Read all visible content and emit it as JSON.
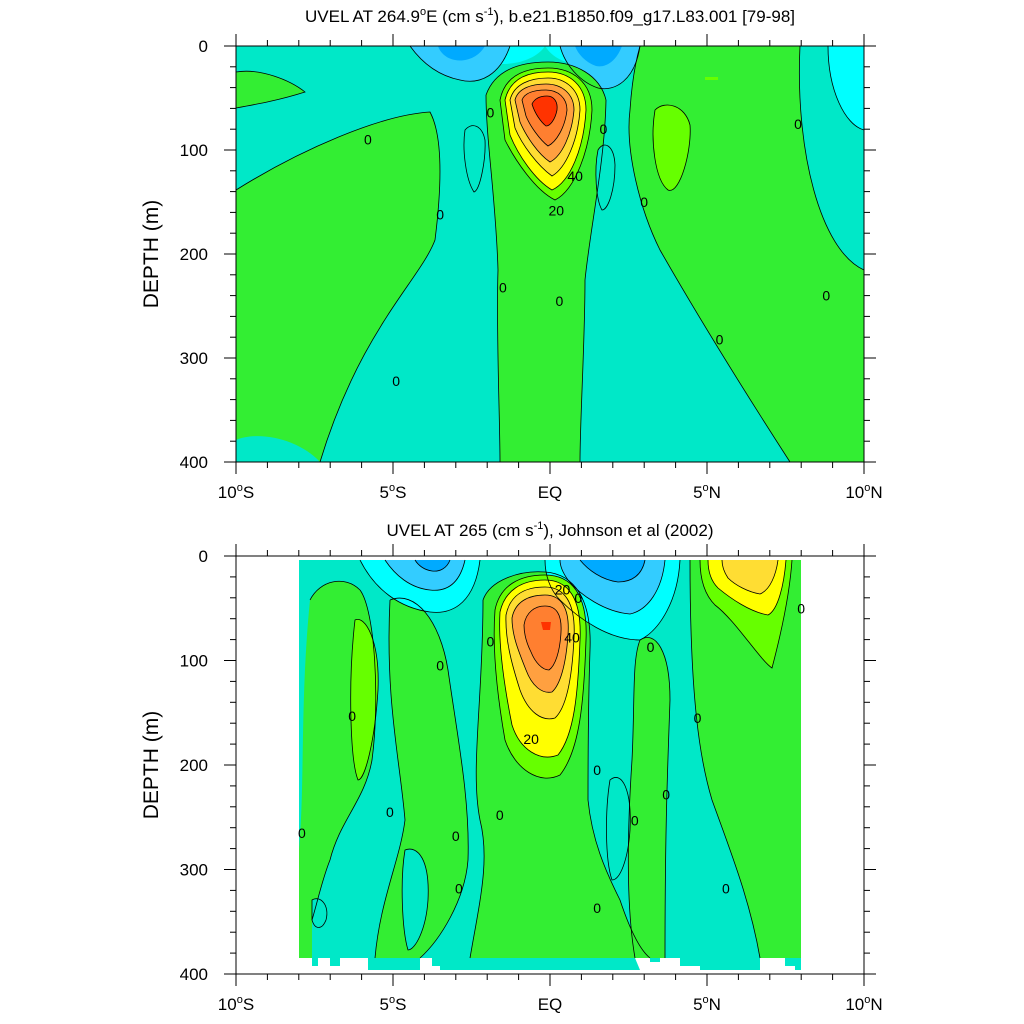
{
  "colors": {
    "cyan": "#00ffff",
    "aqua": "#33e6e6",
    "teal": "#00e8c8",
    "green": "#33ee33",
    "lightgreen": "#66ff00",
    "yellow": "#ffff00",
    "gold": "#ffdd33",
    "orange": "#ffa040",
    "darkorange": "#ff7f30",
    "red": "#ff3300",
    "blue": "#00aaff",
    "lightblue": "#33ccff",
    "line": "#000000"
  },
  "chart_data": [
    {
      "type": "heatmap",
      "title_main": "UVEL AT 264.9",
      "title_deg": "o",
      "title_mid": "E (cm s",
      "title_exp": "-1",
      "title_tail": "), b.e21.B1850.f09_g17.L83.001 [79-98]",
      "ylabel": "DEPTH (m)",
      "x_range": [
        -10,
        10
      ],
      "y_range": [
        0,
        400
      ],
      "y_reversed": true,
      "x_ticks": [
        {
          "value": -10,
          "num": "10",
          "deg": "o",
          "hemi": "S"
        },
        {
          "value": -5,
          "num": "5",
          "deg": "o",
          "hemi": "S"
        },
        {
          "value": 0,
          "num": "EQ",
          "deg": "",
          "hemi": ""
        },
        {
          "value": 5,
          "num": "5",
          "deg": "o",
          "hemi": "N"
        },
        {
          "value": 10,
          "num": "10",
          "deg": "o",
          "hemi": "N"
        }
      ],
      "y_ticks": [
        0,
        100,
        200,
        300,
        400
      ],
      "contour_labels": [
        {
          "x": -5.8,
          "y": 90,
          "text": "0"
        },
        {
          "x": -3.5,
          "y": 162,
          "text": "0"
        },
        {
          "x": -1.9,
          "y": 64,
          "text": "0"
        },
        {
          "x": -1.5,
          "y": 232,
          "text": "0"
        },
        {
          "x": 0.8,
          "y": 125,
          "text": "40"
        },
        {
          "x": 0.2,
          "y": 158,
          "text": "20"
        },
        {
          "x": 0.3,
          "y": 245,
          "text": "0"
        },
        {
          "x": 1.7,
          "y": 80,
          "text": "0"
        },
        {
          "x": 3.0,
          "y": 150,
          "text": "0"
        },
        {
          "x": 5.4,
          "y": 282,
          "text": "0"
        },
        {
          "x": 7.9,
          "y": 75,
          "text": "0"
        },
        {
          "x": 8.8,
          "y": 240,
          "text": "0"
        },
        {
          "x": -4.9,
          "y": 322,
          "text": "0"
        }
      ]
    },
    {
      "type": "heatmap",
      "title_main": "UVEL AT 265 (cm s",
      "title_exp": "-1",
      "title_tail": "), Johnson et al (2002)",
      "ylabel": "DEPTH (m)",
      "x_range": [
        -10,
        10
      ],
      "y_range": [
        0,
        400
      ],
      "y_reversed": true,
      "x_ticks": [
        {
          "value": -10,
          "num": "10",
          "deg": "o",
          "hemi": "S"
        },
        {
          "value": -5,
          "num": "5",
          "deg": "o",
          "hemi": "S"
        },
        {
          "value": 0,
          "num": "EQ",
          "deg": "",
          "hemi": ""
        },
        {
          "value": 5,
          "num": "5",
          "deg": "o",
          "hemi": "N"
        },
        {
          "value": 10,
          "num": "10",
          "deg": "o",
          "hemi": "N"
        }
      ],
      "y_ticks": [
        0,
        100,
        200,
        300,
        400
      ],
      "contour_labels": [
        {
          "x": 0.4,
          "y": 32,
          "text": "20"
        },
        {
          "x": 0.9,
          "y": 40,
          "text": "0"
        },
        {
          "x": 0.7,
          "y": 78,
          "text": "40"
        },
        {
          "x": -1.9,
          "y": 82,
          "text": "0"
        },
        {
          "x": -3.5,
          "y": 105,
          "text": "0"
        },
        {
          "x": -6.3,
          "y": 153,
          "text": "0"
        },
        {
          "x": -0.6,
          "y": 175,
          "text": "20"
        },
        {
          "x": 3.2,
          "y": 87,
          "text": "0"
        },
        {
          "x": 4.7,
          "y": 155,
          "text": "0"
        },
        {
          "x": 8.0,
          "y": 50,
          "text": "0"
        },
        {
          "x": -5.1,
          "y": 245,
          "text": "0"
        },
        {
          "x": -1.6,
          "y": 248,
          "text": "0"
        },
        {
          "x": 1.5,
          "y": 205,
          "text": "0"
        },
        {
          "x": 3.7,
          "y": 228,
          "text": "0"
        },
        {
          "x": 2.7,
          "y": 253,
          "text": "0"
        },
        {
          "x": -3.0,
          "y": 268,
          "text": "0"
        },
        {
          "x": -7.9,
          "y": 265,
          "text": "0"
        },
        {
          "x": -2.9,
          "y": 318,
          "text": "0"
        },
        {
          "x": 5.6,
          "y": 318,
          "text": "0"
        },
        {
          "x": 1.5,
          "y": 337,
          "text": "0"
        }
      ]
    }
  ]
}
